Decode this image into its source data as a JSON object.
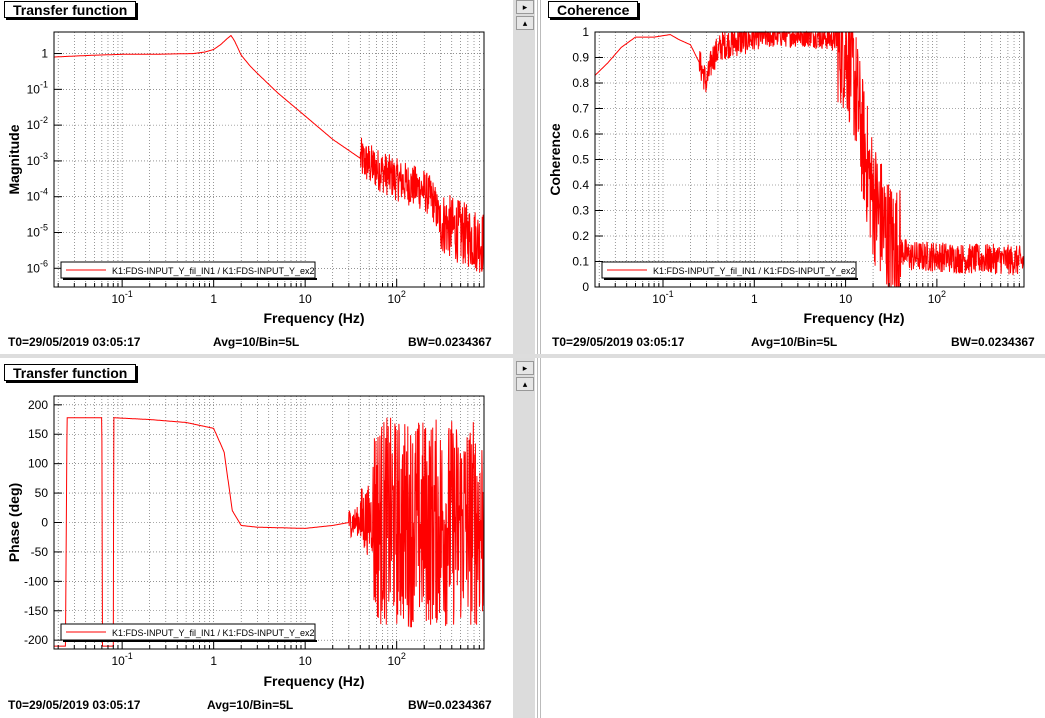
{
  "panels": {
    "tf_mag": {
      "tab": "Transfer function",
      "footer_t0": "T0=29/05/2019 03:05:17",
      "footer_avg": "Avg=10/Bin=5L",
      "footer_bw": "BW=0.0234367"
    },
    "coherence": {
      "tab": "Coherence",
      "footer_t0": "T0=29/05/2019 03:05:17",
      "footer_avg": "Avg=10/Bin=5L",
      "footer_bw": "BW=0.0234367"
    },
    "tf_phase": {
      "tab": "Transfer function",
      "footer_t0": "T0=29/05/2019 03:05:17",
      "footer_avg": "Avg=10/Bin=5L",
      "footer_bw": "BW=0.0234367"
    }
  },
  "colors": {
    "trace": "#ff0000",
    "grid": "#555555",
    "background": "#ffffff"
  },
  "chart_data": [
    {
      "id": "tf_mag",
      "type": "line",
      "xlabel": "Frequency (Hz)",
      "ylabel": "Magnitude",
      "xscale": "log",
      "yscale": "log",
      "xlim": [
        0.018,
        900
      ],
      "ylim": [
        3e-07,
        4
      ],
      "xticks": [
        0.1,
        1,
        10,
        100
      ],
      "xtick_labels": [
        "10^-1",
        "1",
        "10",
        "10^2"
      ],
      "yticks": [
        1,
        0.1,
        0.01,
        0.001,
        0.0001,
        1e-05,
        1e-06
      ],
      "ytick_labels": [
        "1",
        "10^-1",
        "10^-2",
        "10^-3",
        "10^-4",
        "10^-5",
        "10^-6"
      ],
      "legend": "K1:FDS-INPUT_Y_fil_IN1 / K1:FDS-INPUT_Y_ex2",
      "legend_position": "bottom-left",
      "grid": true,
      "series": [
        {
          "x": [
            0.018,
            0.03,
            0.05,
            0.1,
            0.2,
            0.4,
            0.6,
            0.8,
            1.0,
            1.2,
            1.4,
            1.55,
            1.7,
            2.0,
            2.5,
            3,
            5,
            10,
            20,
            50,
            100,
            200,
            250,
            300,
            500,
            900
          ],
          "y": [
            0.8,
            0.85,
            0.9,
            0.95,
            0.95,
            0.98,
            1.0,
            1.1,
            1.3,
            1.8,
            2.6,
            3.2,
            2.2,
            0.9,
            0.45,
            0.28,
            0.08,
            0.018,
            0.004,
            0.0008,
            0.0003,
            0.00015,
            8e-05,
            2e-05,
            1e-05,
            5e-06
          ],
          "noise_from_x": 40
        }
      ]
    },
    {
      "id": "coherence",
      "type": "line",
      "xlabel": "Frequency (Hz)",
      "ylabel": "Coherence",
      "xscale": "log",
      "yscale": "linear",
      "xlim": [
        0.018,
        900
      ],
      "ylim": [
        0,
        1
      ],
      "xticks": [
        0.1,
        1,
        10,
        100
      ],
      "xtick_labels": [
        "10^-1",
        "1",
        "10",
        "10^2"
      ],
      "yticks": [
        0,
        0.1,
        0.2,
        0.3,
        0.4,
        0.5,
        0.6,
        0.7,
        0.8,
        0.9,
        1
      ],
      "ytick_labels": [
        "0",
        "0.1",
        "0.2",
        "0.3",
        "0.4",
        "0.5",
        "0.6",
        "0.7",
        "0.8",
        "0.9",
        "1"
      ],
      "legend": "K1:FDS-INPUT_Y_fil_IN1 / K1:FDS-INPUT_Y_ex2",
      "legend_position": "bottom-left",
      "grid": true,
      "series": [
        {
          "x": [
            0.018,
            0.025,
            0.035,
            0.05,
            0.08,
            0.12,
            0.15,
            0.2,
            0.25,
            0.3,
            0.35,
            0.45,
            0.6,
            0.8,
            1,
            2,
            4,
            6,
            8,
            10,
            12,
            15,
            20,
            30,
            50,
            100,
            200,
            500,
            900
          ],
          "y": [
            0.83,
            0.88,
            0.94,
            0.98,
            0.98,
            0.99,
            0.97,
            0.95,
            0.88,
            0.8,
            0.9,
            0.95,
            0.96,
            0.97,
            0.98,
            0.99,
            0.99,
            0.98,
            0.97,
            0.93,
            0.85,
            0.6,
            0.35,
            0.18,
            0.12,
            0.12,
            0.11,
            0.11,
            0.1
          ],
          "noise_from_x": 0.25
        }
      ]
    },
    {
      "id": "tf_phase",
      "type": "line",
      "xlabel": "Frequency (Hz)",
      "ylabel": "Phase (deg)",
      "xscale": "log",
      "yscale": "linear",
      "xlim": [
        0.018,
        900
      ],
      "ylim": [
        -215,
        215
      ],
      "xticks": [
        0.1,
        1,
        10,
        100
      ],
      "xtick_labels": [
        "10^-1",
        "1",
        "10",
        "10^2"
      ],
      "yticks": [
        200,
        150,
        100,
        50,
        0,
        -50,
        -100,
        -150,
        -200
      ],
      "ytick_labels": [
        "200",
        "150",
        "100",
        "50",
        "0",
        "-50",
        "-100",
        "-150",
        "-200"
      ],
      "legend": "K1:FDS-INPUT_Y_fil_IN1 / K1:FDS-INPUT_Y_ex2",
      "legend_position": "bottom-left",
      "grid": true,
      "series": [
        {
          "x": [
            0.018,
            0.024,
            0.025,
            0.026,
            0.06,
            0.061,
            0.062,
            0.08,
            0.081,
            0.082,
            0.2,
            0.5,
            1.0,
            1.3,
            1.6,
            2,
            3,
            10,
            20,
            30,
            50,
            100,
            300,
            900
          ],
          "y": [
            -210,
            -210,
            178,
            178,
            178,
            -210,
            -210,
            -210,
            178,
            178,
            175,
            170,
            160,
            120,
            20,
            -5,
            -8,
            -10,
            -5,
            0,
            5,
            0,
            0,
            0
          ],
          "noise_from_x": 30
        }
      ]
    }
  ]
}
